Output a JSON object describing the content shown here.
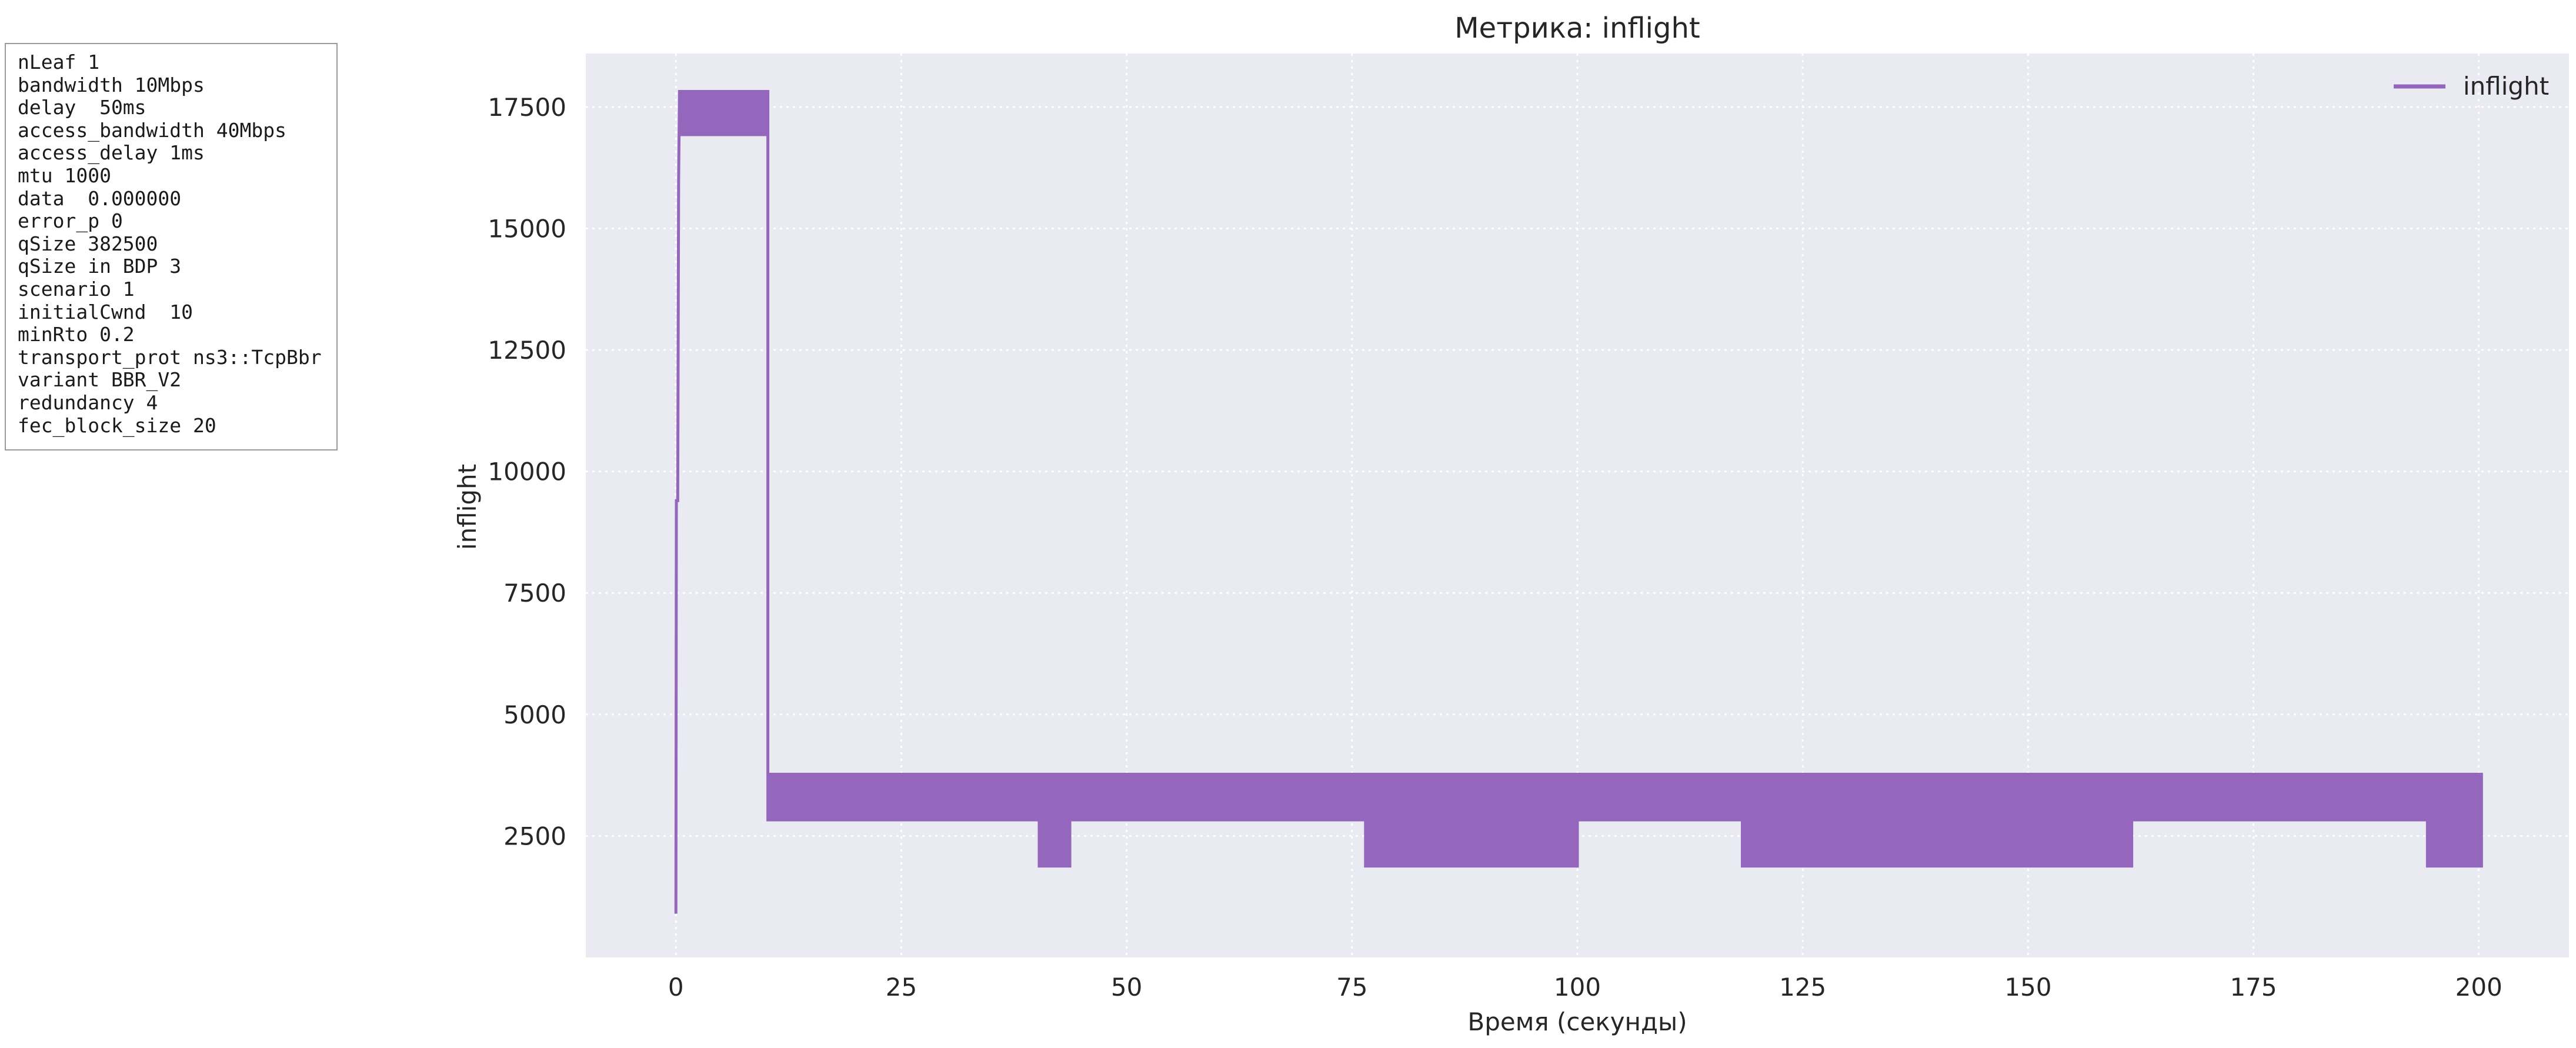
{
  "params_box": {
    "lines": [
      "nLeaf 1",
      "bandwidth 10Mbps",
      "delay  50ms",
      "access_bandwidth 40Mbps",
      "access_delay 1ms",
      "mtu 1000",
      "data  0.000000",
      "error_p 0",
      "qSize 382500",
      "qSize in BDP 3",
      "scenario 1",
      "initialCwnd  10",
      "minRto 0.2",
      "transport_prot ns3::TcpBbr",
      "variant BBR_V2",
      "redundancy 4",
      "fec_block_size 20"
    ]
  },
  "chart_data": {
    "type": "line",
    "title": "Метрика: inflight",
    "xlabel": "Время (секунды)",
    "ylabel": "inflight",
    "xlim": [
      -10,
      210
    ],
    "ylim": [
      0,
      18600
    ],
    "xticks": [
      0,
      25,
      50,
      75,
      100,
      125,
      150,
      175,
      200
    ],
    "yticks": [
      2500,
      5000,
      7500,
      10000,
      12500,
      15000,
      17500
    ],
    "grid": true,
    "background": "#eaeaf2",
    "legend": {
      "position": "top-right",
      "entries": [
        "inflight"
      ]
    },
    "series": [
      {
        "name": "inflight",
        "color": "#9467bd",
        "render": "oscillating-band",
        "startup": [
          {
            "x": 0.0,
            "y": 900
          },
          {
            "x": 0.05,
            "y": 9400
          },
          {
            "x": 0.2,
            "y": 9400
          },
          {
            "x": 0.3,
            "y": 16000
          },
          {
            "x": 0.4,
            "y": 17850
          }
        ],
        "bands": [
          {
            "x_start": 0.4,
            "x_end": 10.2,
            "low": 16900,
            "high": 17850
          },
          {
            "x_start": 10.2,
            "x_end": 40.3,
            "low": 2800,
            "high": 3800
          },
          {
            "x_start": 40.3,
            "x_end": 43.7,
            "low": 1850,
            "high": 3800
          },
          {
            "x_start": 43.7,
            "x_end": 76.5,
            "low": 2800,
            "high": 3800
          },
          {
            "x_start": 76.5,
            "x_end": 100.0,
            "low": 1850,
            "high": 3800
          },
          {
            "x_start": 100.0,
            "x_end": 118.3,
            "low": 2800,
            "high": 3800
          },
          {
            "x_start": 118.3,
            "x_end": 161.5,
            "low": 1850,
            "high": 3800
          },
          {
            "x_start": 161.5,
            "x_end": 194.3,
            "low": 2800,
            "high": 3800
          },
          {
            "x_start": 194.3,
            "x_end": 200.3,
            "low": 1850,
            "high": 3800
          }
        ]
      }
    ]
  }
}
